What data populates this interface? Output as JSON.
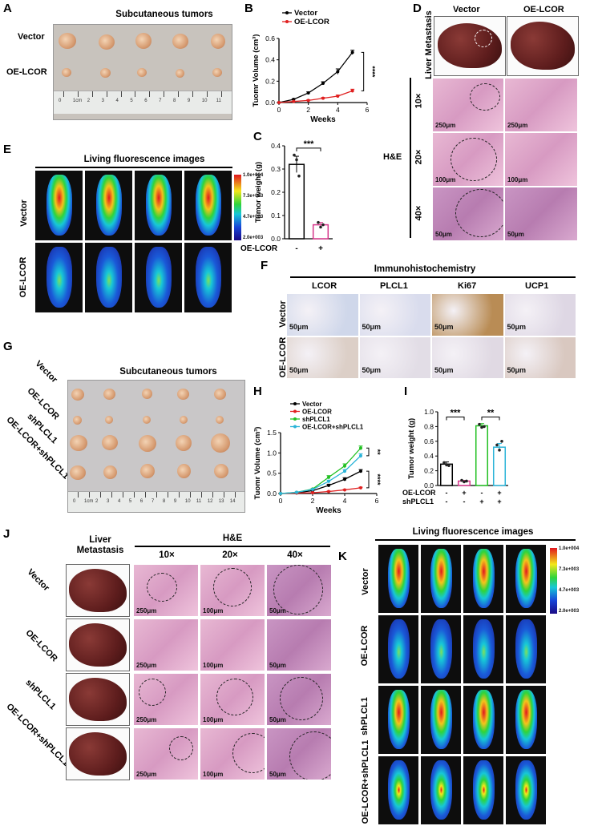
{
  "panels": {
    "A": {
      "letter": "A",
      "title": "Subcutaneous tumors",
      "rows": [
        "Vector",
        "OE-LCOR"
      ],
      "ruler": [
        "0",
        "1cm",
        "2",
        "3",
        "4",
        "5",
        "6",
        "7",
        "8",
        "9",
        "10",
        "11"
      ]
    },
    "B": {
      "letter": "B"
    },
    "C": {
      "letter": "C"
    },
    "D": {
      "letter": "D",
      "cols": [
        "Vector",
        "OE-LCOR"
      ],
      "row_label": "Liver Metastasis",
      "he_label": "H&E",
      "mags": [
        "10×",
        "20×",
        "40×"
      ],
      "scales": [
        "250μm",
        "250μm",
        "100μm",
        "100μm",
        "50μm",
        "50μm"
      ]
    },
    "E": {
      "letter": "E",
      "title": "Living fluorescence images",
      "rows": [
        "Vector",
        "OE-LCOR"
      ],
      "colorbar": [
        "1.0e+004",
        "7.3e+003",
        "4.7e+003",
        "2.0e+003"
      ]
    },
    "F": {
      "letter": "F",
      "title": "Immunohistochemistry",
      "cols": [
        "LCOR",
        "PLCL1",
        "Ki67",
        "UCP1"
      ],
      "rows": [
        "Vector",
        "OE-LCOR"
      ],
      "scale": "50μm"
    },
    "G": {
      "letter": "G",
      "title": "Subcutaneous tumors",
      "rows": [
        "Vector",
        "OE-LCOR",
        "shPLCL1",
        "OE-LCOR+shPLCL1"
      ],
      "ruler": [
        "0",
        "1cm",
        "2",
        "3",
        "4",
        "5",
        "6",
        "7",
        "8",
        "9",
        "10",
        "11",
        "12",
        "13",
        "14"
      ]
    },
    "H": {
      "letter": "H"
    },
    "I": {
      "letter": "I"
    },
    "J": {
      "letter": "J",
      "liver_label": "Liver Metastasis",
      "he_label": "H&E",
      "mags": [
        "10×",
        "20×",
        "40×"
      ],
      "rows": [
        "Vector",
        "OE-LCOR",
        "shPLCL1",
        "OE-LCOR+shPLCL1"
      ],
      "scales": [
        "250μm",
        "100μm",
        "50μm"
      ]
    },
    "K": {
      "letter": "K",
      "title": "Living fluorescence images",
      "rows": [
        "Vector",
        "OE-LCOR",
        "shPLCL1",
        "OE-LCOR+shPLCL1"
      ],
      "colorbar": [
        "1.0e+004",
        "7.3e+003",
        "4.7e+003",
        "2.0e+003"
      ]
    }
  },
  "chart_data": [
    {
      "id": "B",
      "type": "line",
      "xlabel": "Weeks",
      "ylabel": "Tuomr Volume (cm³)",
      "x": [
        0,
        1,
        2,
        3,
        4,
        5
      ],
      "xticks": [
        "0",
        "2",
        "4",
        "6"
      ],
      "xlim": [
        0,
        6
      ],
      "ylim": [
        0,
        0.6
      ],
      "yticks": [
        "0.0",
        "0.2",
        "0.4",
        "0.6"
      ],
      "series": [
        {
          "name": "Vector",
          "color": "#000000",
          "values": [
            0.0,
            0.03,
            0.09,
            0.18,
            0.29,
            0.47
          ],
          "err": [
            0,
            0.005,
            0.01,
            0.015,
            0.025,
            0.02
          ]
        },
        {
          "name": "OE-LCOR",
          "color": "#e02020",
          "values": [
            0.0,
            0.01,
            0.02,
            0.04,
            0.06,
            0.11
          ],
          "err": [
            0,
            0.003,
            0.005,
            0.007,
            0.01,
            0.015
          ]
        }
      ],
      "significance": "****"
    },
    {
      "id": "C",
      "type": "bar",
      "ylabel": "Tumor weight (g)",
      "ylim": [
        0,
        0.4
      ],
      "yticks": [
        "0.0",
        "0.1",
        "0.2",
        "0.3",
        "0.4"
      ],
      "row_label": "OE-LCOR",
      "categories": [
        "-",
        "+"
      ],
      "values": [
        0.32,
        0.06
      ],
      "err": [
        0.035,
        0.01
      ],
      "points": [
        [
          0.36,
          0.34,
          0.27
        ],
        [
          0.07,
          0.05,
          0.06
        ]
      ],
      "colors": [
        "#000000",
        "#d6368a"
      ],
      "significance": "***"
    },
    {
      "id": "H",
      "type": "line",
      "xlabel": "Weeks",
      "ylabel": "Tuomr Volume (cm³)",
      "x": [
        0,
        1,
        2,
        3,
        4,
        5
      ],
      "xticks": [
        "0",
        "2",
        "4",
        "6"
      ],
      "xlim": [
        0,
        6
      ],
      "ylim": [
        0,
        1.5
      ],
      "yticks": [
        "0.0",
        "0.5",
        "1.0",
        "1.5"
      ],
      "series": [
        {
          "name": "Vector",
          "color": "#000000",
          "values": [
            0.0,
            0.02,
            0.07,
            0.2,
            0.35,
            0.55
          ],
          "err": [
            0,
            0.005,
            0.01,
            0.03,
            0.04,
            0.04
          ]
        },
        {
          "name": "OE-LCOR",
          "color": "#e02020",
          "values": [
            0.0,
            0.01,
            0.02,
            0.05,
            0.09,
            0.14
          ],
          "err": [
            0,
            0.003,
            0.005,
            0.01,
            0.01,
            0.015
          ]
        },
        {
          "name": "shPLCL1",
          "color": "#22c022",
          "values": [
            0.0,
            0.03,
            0.11,
            0.4,
            0.68,
            1.12
          ],
          "err": [
            0,
            0.005,
            0.01,
            0.04,
            0.05,
            0.05
          ]
        },
        {
          "name": "OE-LCOR+shPLCL1",
          "color": "#2bb4d8",
          "values": [
            0.0,
            0.03,
            0.1,
            0.3,
            0.55,
            0.93
          ],
          "err": [
            0,
            0.005,
            0.01,
            0.03,
            0.04,
            0.05
          ]
        }
      ],
      "significance": [
        "**",
        "****"
      ]
    },
    {
      "id": "I",
      "type": "bar",
      "ylabel": "Tumor weight (g)",
      "ylim": [
        0,
        1.0
      ],
      "yticks": [
        "0.0",
        "0.2",
        "0.4",
        "0.6",
        "0.8",
        "1.0"
      ],
      "rows": [
        {
          "label": "OE-LCOR",
          "signs": [
            "-",
            "+",
            "-",
            "+"
          ]
        },
        {
          "label": "shPLCL1",
          "signs": [
            "-",
            "-",
            "+",
            "+"
          ]
        }
      ],
      "values": [
        0.29,
        0.06,
        0.81,
        0.52
      ],
      "err": [
        0.03,
        0.01,
        0.03,
        0.05
      ],
      "points": [
        [
          0.31,
          0.28,
          0.27
        ],
        [
          0.07,
          0.05,
          0.06
        ],
        [
          0.83,
          0.79,
          0.8
        ],
        [
          0.55,
          0.48,
          0.6
        ]
      ],
      "colors": [
        "#000000",
        "#d6368a",
        "#22c022",
        "#2bb4d8"
      ],
      "significance": [
        "***",
        "**"
      ]
    }
  ]
}
